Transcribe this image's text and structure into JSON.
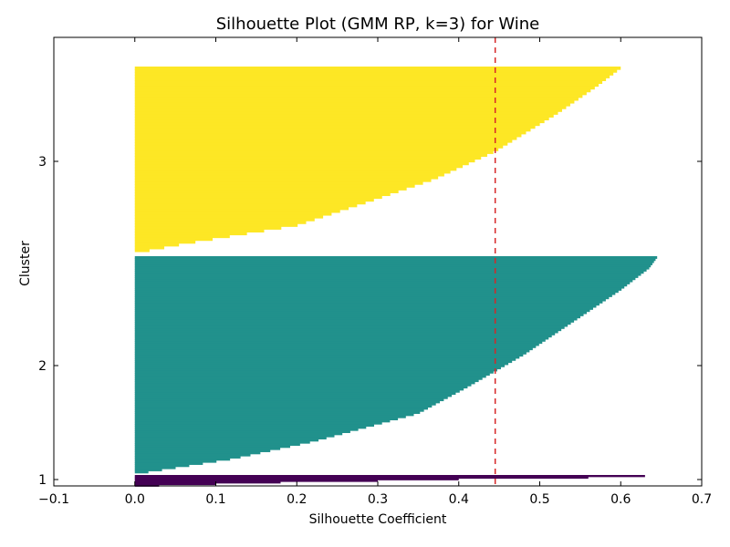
{
  "chart_data": {
    "type": "silhouette",
    "title": "Silhouette Plot (GMM RP, k=3) for Wine",
    "xlabel": "Silhouette Coefficient",
    "ylabel": "Cluster",
    "xlim": [
      -0.1,
      0.7
    ],
    "xticks": [
      -0.1,
      0.0,
      0.1,
      0.2,
      0.3,
      0.4,
      0.5,
      0.6,
      0.7
    ],
    "xtick_labels": [
      "−0.1",
      "0.0",
      "0.1",
      "0.2",
      "0.3",
      "0.4",
      "0.5",
      "0.6",
      "0.7"
    ],
    "ytick_labels": [
      "1",
      "2",
      "3"
    ],
    "average_silhouette": 0.445,
    "average_line_color": "#d62728",
    "clusters": [
      {
        "label": "1",
        "color": "#440154",
        "count": 8,
        "values": [
          0.63,
          0.56,
          0.4,
          0.3,
          0.18,
          0.1,
          0.03,
          0.0
        ]
      },
      {
        "label": "2",
        "color": "#21918c",
        "count": 103,
        "min": 0.0,
        "max": 0.645,
        "profile": [
          [
            0.0,
            0.645
          ],
          [
            0.05,
            0.635
          ],
          [
            0.15,
            0.6
          ],
          [
            0.3,
            0.54
          ],
          [
            0.45,
            0.48
          ],
          [
            0.6,
            0.41
          ],
          [
            0.72,
            0.35
          ],
          [
            0.85,
            0.22
          ],
          [
            0.93,
            0.12
          ],
          [
            1.0,
            0.0
          ]
        ]
      },
      {
        "label": "3",
        "color": "#fde725",
        "count": 67,
        "min": 0.0,
        "max": 0.6,
        "profile": [
          [
            0.0,
            0.6
          ],
          [
            0.1,
            0.57
          ],
          [
            0.25,
            0.52
          ],
          [
            0.45,
            0.445
          ],
          [
            0.6,
            0.37
          ],
          [
            0.72,
            0.29
          ],
          [
            0.85,
            0.2
          ],
          [
            0.95,
            0.06
          ],
          [
            1.0,
            0.0
          ]
        ]
      }
    ],
    "grid": false
  }
}
